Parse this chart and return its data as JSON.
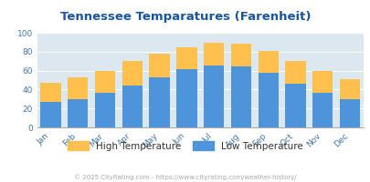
{
  "title": "Tennessee Temparatures (Farenheit)",
  "months": [
    "Jan",
    "Feb",
    "Mar",
    "Apr",
    "May",
    "Jun",
    "Jul",
    "Aug",
    "Sep",
    "Oct",
    "Nov",
    "Dec"
  ],
  "low_temps": [
    27,
    30,
    37,
    44,
    53,
    62,
    65,
    64,
    58,
    46,
    37,
    30
  ],
  "high_temps": [
    47,
    53,
    60,
    70,
    78,
    85,
    89,
    88,
    81,
    70,
    60,
    51
  ],
  "low_color": "#4d94db",
  "high_color": "#ffc04d",
  "bg_color": "#dce8ef",
  "title_color": "#1a55a0",
  "axis_label_color": "#4477aa",
  "grid_color": "#ffffff",
  "ylabel_max": 100,
  "yticks": [
    0,
    20,
    40,
    60,
    80,
    100
  ],
  "legend_low": "Low Temperature",
  "legend_high": "High Temperature",
  "legend_text_color": "#333333",
  "watermark": "© 2025 CityRating.com - https://www.cityrating.com/weather-history/",
  "watermark_color": "#aaaaaa"
}
